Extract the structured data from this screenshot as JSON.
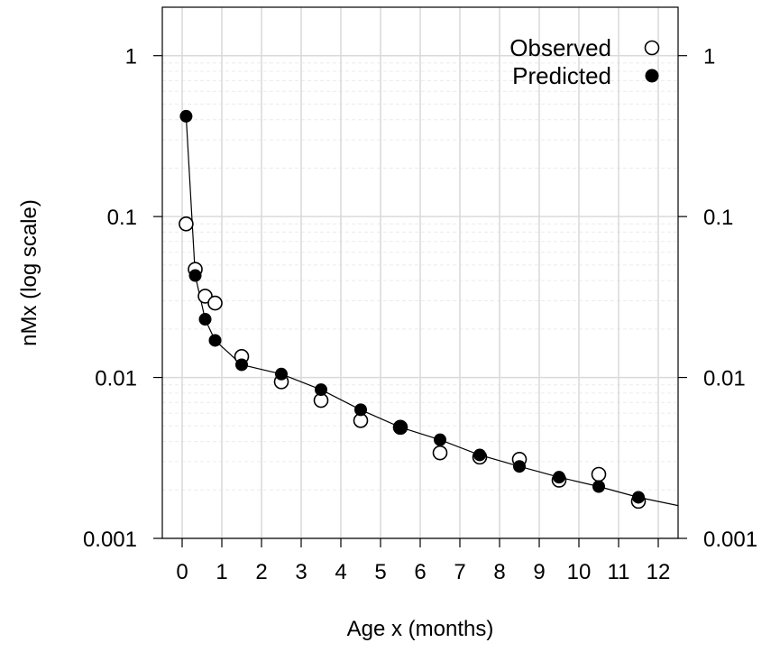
{
  "chart_data": {
    "type": "scatter",
    "xlabel": "Age x (months)",
    "ylabel": "nMx (log scale)",
    "xlim": [
      -0.5,
      12.5
    ],
    "ylim": [
      0.001,
      2
    ],
    "y_scale": "log",
    "grid": true,
    "legend_position": "top-right",
    "x_ticks": [
      0,
      1,
      2,
      3,
      4,
      5,
      6,
      7,
      8,
      9,
      10,
      11,
      12
    ],
    "x_tick_labels": [
      "0",
      "1",
      "2",
      "3",
      "4",
      "5",
      "6",
      "7",
      "8",
      "9",
      "10",
      "11",
      "12"
    ],
    "y_ticks": [
      0.001,
      0.01,
      0.1,
      1
    ],
    "y_tick_labels": [
      "0.001",
      "0.01",
      "0.1",
      "1"
    ],
    "series": [
      {
        "name": "Observed",
        "marker": "open-circle",
        "x": [
          0.1,
          0.33,
          0.58,
          0.83,
          1.5,
          2.5,
          3.5,
          4.5,
          5.5,
          6.5,
          7.5,
          8.5,
          9.5,
          10.5,
          11.5
        ],
        "y": [
          0.09,
          0.047,
          0.032,
          0.029,
          0.0135,
          0.0094,
          0.0072,
          0.0054,
          0.0049,
          0.0034,
          0.0032,
          0.0031,
          0.0023,
          0.0025,
          0.0017
        ]
      },
      {
        "name": "Predicted",
        "marker": "filled-circle",
        "x": [
          0.1,
          0.33,
          0.58,
          0.83,
          1.5,
          2.5,
          3.5,
          4.5,
          5.5,
          6.5,
          7.5,
          8.5,
          9.5,
          10.5,
          11.5
        ],
        "y": [
          0.42,
          0.043,
          0.023,
          0.017,
          0.012,
          0.0105,
          0.0084,
          0.0063,
          0.0049,
          0.0041,
          0.0033,
          0.0028,
          0.0024,
          0.0021,
          0.0018
        ]
      }
    ],
    "fitted_curve": {
      "x": [
        0.1,
        0.33,
        0.58,
        0.83,
        1.5,
        2.5,
        3.5,
        4.5,
        5.5,
        6.5,
        7.5,
        8.5,
        9.5,
        10.5,
        11.5,
        12.5
      ],
      "y": [
        0.42,
        0.043,
        0.023,
        0.017,
        0.012,
        0.0105,
        0.0084,
        0.0063,
        0.0049,
        0.0041,
        0.0033,
        0.0028,
        0.0024,
        0.0021,
        0.0018,
        0.0016
      ]
    },
    "colors": {
      "grid_major": "#d9d9d9",
      "grid_minor": "#ececec",
      "ink": "#000000",
      "background": "#ffffff"
    }
  }
}
